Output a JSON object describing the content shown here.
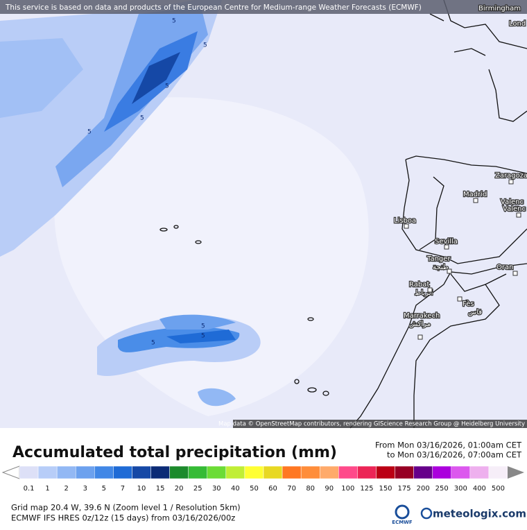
{
  "banner": "This service is based on data and products of the European Centre for Medium-range Weather Forecasts (ECMWF)",
  "cities": [
    {
      "name": "Birmingham"
    },
    {
      "name": "Lond"
    },
    {
      "name": "Zaragoza"
    },
    {
      "name": "Madrid"
    },
    {
      "name": "Valenc"
    },
    {
      "name": "Valenc"
    },
    {
      "name": "Lisboa"
    },
    {
      "name": "Sevilla"
    },
    {
      "name": "Tanger",
      "alt": "طنجة"
    },
    {
      "name": "Oran"
    },
    {
      "name": "Rabat",
      "alt": "الرباط"
    },
    {
      "name": "Fès",
      "alt": "فاس"
    },
    {
      "name": "Marrakech",
      "alt": "مراكش"
    }
  ],
  "contour_labels": [
    "5",
    "5",
    "5",
    "5",
    "5",
    "5",
    "5",
    "5"
  ],
  "attribution": "Map data © OpenStreetMap contributors, rendering GIScience Research Group @ Heidelberg University",
  "title": "Accumulated total precipitation (mm)",
  "period_from": "From Mon 03/16/2026, 01:00am CET",
  "period_to": "to Mon 03/16/2026, 07:00am CET",
  "legend": [
    {
      "label": "0.1",
      "color": "#dde0f7"
    },
    {
      "label": "1",
      "color": "#b7cdf8"
    },
    {
      "label": "2",
      "color": "#92b8f4"
    },
    {
      "label": "3",
      "color": "#6ca1ee"
    },
    {
      "label": "5",
      "color": "#4187e6"
    },
    {
      "label": "7",
      "color": "#1f6bd6"
    },
    {
      "label": "10",
      "color": "#1548a6"
    },
    {
      "label": "15",
      "color": "#0b2b76"
    },
    {
      "label": "20",
      "color": "#1c8a2c"
    },
    {
      "label": "25",
      "color": "#35bb35"
    },
    {
      "label": "30",
      "color": "#6bdc35"
    },
    {
      "label": "40",
      "color": "#c0ee35"
    },
    {
      "label": "50",
      "color": "#ffff33"
    },
    {
      "label": "60",
      "color": "#e8d822"
    },
    {
      "label": "70",
      "color": "#ff7722"
    },
    {
      "label": "80",
      "color": "#ff8d3a"
    },
    {
      "label": "90",
      "color": "#ffaa6a"
    },
    {
      "label": "100",
      "color": "#ff4a8a"
    },
    {
      "label": "125",
      "color": "#ec2556"
    },
    {
      "label": "150",
      "color": "#bb0014"
    },
    {
      "label": "175",
      "color": "#970024"
    },
    {
      "label": "200",
      "color": "#66008a"
    },
    {
      "label": "250",
      "color": "#ab00dd"
    },
    {
      "label": "300",
      "color": "#dc58ee"
    },
    {
      "label": "400",
      "color": "#eeb0ee"
    },
    {
      "label": "500",
      "color": "#f6eef8"
    }
  ],
  "footer_line1": "Grid map 20.4 W, 39.6 N (Zoom level 1 / Resolution 5km)",
  "footer_line2": "ECMWF IFS HRES 0z/12z (15 days) from  03/16/2026/00z",
  "ecmwf_logo": "ECMWF",
  "site": "meteologix.com"
}
